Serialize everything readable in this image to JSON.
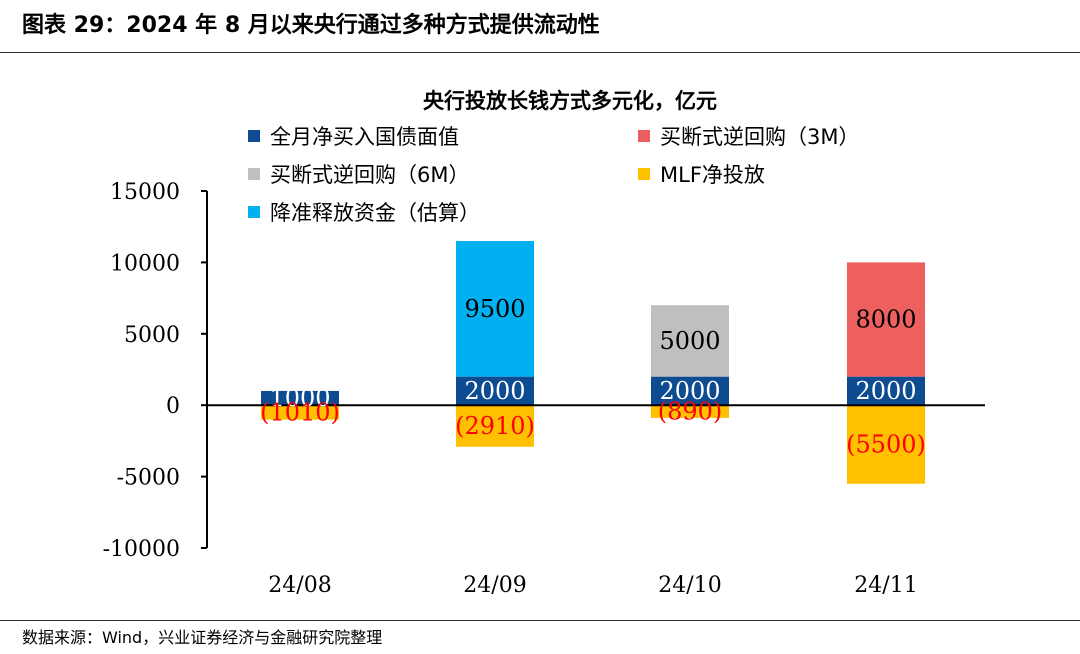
{
  "figure_header": "图表 29：2024 年 8 月以来央行通过多种方式提供流动性",
  "source_note": "数据来源：Wind，兴业证券经济与金融研究院整理",
  "chart_data": {
    "type": "bar",
    "stacked": true,
    "title": "央行投放长钱方式多元化，亿元",
    "categories": [
      "24/08",
      "24/09",
      "24/10",
      "24/11"
    ],
    "ylim": [
      -10000,
      15000
    ],
    "yticks": [
      15000,
      10000,
      5000,
      0,
      -5000,
      -10000
    ],
    "ytick_labels": [
      "15000",
      "10000",
      "5000",
      "0",
      "-5000",
      "-10000"
    ],
    "grid": false,
    "legend_position": "top-left",
    "series": [
      {
        "name": "全月净买入国债面值",
        "color": "#0E4C92",
        "values": [
          1000,
          2000,
          2000,
          2000
        ],
        "labels": [
          "1000",
          "2000",
          "2000",
          "2000"
        ],
        "label_color": "#ffffff"
      },
      {
        "name": "买断式逆回购（3M）",
        "color": "#EE5F5F",
        "values": [
          0,
          0,
          0,
          8000
        ],
        "labels": [
          "",
          "",
          "",
          "8000"
        ],
        "label_color": "#000000"
      },
      {
        "name": "买断式逆回购（6M）",
        "color": "#BFBFBF",
        "values": [
          0,
          0,
          5000,
          0
        ],
        "labels": [
          "",
          "",
          "5000",
          ""
        ],
        "label_color": "#000000"
      },
      {
        "name": "MLF净投放",
        "color": "#FFC000",
        "values": [
          -1010,
          -2910,
          -890,
          -5500
        ],
        "labels": [
          "(1010)",
          "(2910)",
          "(890)",
          "(5500)"
        ],
        "label_color": "#FF0000"
      },
      {
        "name": "降准释放资金（估算）",
        "color": "#00B0F0",
        "values": [
          0,
          9500,
          0,
          0
        ],
        "labels": [
          "",
          "9500",
          "",
          ""
        ],
        "label_color": "#000000"
      }
    ]
  }
}
